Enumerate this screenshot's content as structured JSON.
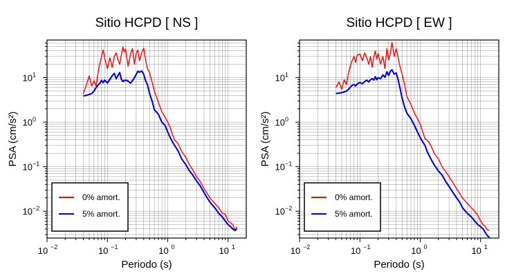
{
  "figure": {
    "colors": {
      "series_0": "#ff0000",
      "series_1": "#0000d8",
      "frame": "#000000",
      "grid": "#000000"
    }
  },
  "chart_data": [
    {
      "type": "line",
      "title": "Sitio HCPD [ NS ]",
      "xlabel": "Periodo (s)",
      "ylabel": "PSA (cm/s²)",
      "xscale": "log",
      "yscale": "log",
      "xlim": [
        0.01,
        20
      ],
      "ylim": [
        0.0025,
        70
      ],
      "grid": true,
      "legend_position": "bottom-left",
      "x_ticks": [
        {
          "base": "10",
          "exp": "−2",
          "value": 0.01
        },
        {
          "base": "10",
          "exp": "−1",
          "value": 0.1
        },
        {
          "base": "10",
          "exp": "0",
          "value": 1
        },
        {
          "base": "10",
          "exp": "1",
          "value": 10
        }
      ],
      "y_ticks": [
        {
          "base": "10",
          "exp": "−2",
          "value": 0.01
        },
        {
          "base": "10",
          "exp": "−1",
          "value": 0.1
        },
        {
          "base": "10",
          "exp": "0",
          "value": 1
        },
        {
          "base": "10",
          "exp": "1",
          "value": 10
        }
      ],
      "series": [
        {
          "name": "0% amort.",
          "color": "#ff0000",
          "x": [
            0.04,
            0.045,
            0.05,
            0.055,
            0.06,
            0.065,
            0.07,
            0.075,
            0.08,
            0.085,
            0.09,
            0.1,
            0.11,
            0.12,
            0.13,
            0.14,
            0.15,
            0.16,
            0.17,
            0.18,
            0.19,
            0.2,
            0.22,
            0.24,
            0.26,
            0.28,
            0.3,
            0.32,
            0.34,
            0.37,
            0.4,
            0.43,
            0.46,
            0.5,
            0.55,
            0.6,
            0.7,
            0.8,
            0.9,
            1.0,
            1.1,
            1.2,
            1.3,
            1.5,
            1.7,
            2.0,
            2.3,
            2.6,
            3.0,
            3.5,
            4.0,
            4.5,
            5.0,
            6.0,
            7.0,
            8.0,
            9.0,
            10.0,
            11.0,
            12.0,
            13.0,
            14.0
          ],
          "y": [
            4.4,
            7.0,
            11.0,
            6.5,
            8.5,
            6.5,
            13.0,
            21.0,
            30.0,
            42.0,
            28.0,
            16.0,
            28.0,
            17.0,
            30.0,
            36.0,
            25.0,
            20.0,
            32.0,
            49.0,
            38.0,
            44.0,
            18.0,
            33.0,
            45.0,
            20.0,
            35.0,
            42.0,
            24.0,
            36.0,
            46.0,
            25.0,
            16.0,
            13.0,
            8.0,
            5.0,
            2.8,
            1.7,
            1.3,
            1.0,
            0.75,
            0.52,
            0.4,
            0.32,
            0.22,
            0.16,
            0.11,
            0.085,
            0.06,
            0.045,
            0.032,
            0.025,
            0.02,
            0.015,
            0.012,
            0.009,
            0.0085,
            0.006,
            0.0055,
            0.005,
            0.0037,
            0.0045
          ]
        },
        {
          "name": "5% amort.",
          "color": "#0000d8",
          "x": [
            0.04,
            0.045,
            0.05,
            0.055,
            0.06,
            0.065,
            0.07,
            0.075,
            0.08,
            0.085,
            0.09,
            0.1,
            0.11,
            0.12,
            0.13,
            0.14,
            0.15,
            0.16,
            0.17,
            0.18,
            0.19,
            0.2,
            0.22,
            0.24,
            0.26,
            0.28,
            0.3,
            0.32,
            0.34,
            0.37,
            0.4,
            0.43,
            0.46,
            0.5,
            0.55,
            0.6,
            0.7,
            0.8,
            0.9,
            1.0,
            1.1,
            1.2,
            1.3,
            1.5,
            1.7,
            2.0,
            2.3,
            2.6,
            3.0,
            3.5,
            4.0,
            4.5,
            5.0,
            6.0,
            7.0,
            8.0,
            9.0,
            10.0,
            11.0,
            12.0,
            13.0,
            14.0
          ],
          "y": [
            3.9,
            4.0,
            4.2,
            4.4,
            5.0,
            6.0,
            6.8,
            7.5,
            8.7,
            7.7,
            8.8,
            7.6,
            9.2,
            11.0,
            12.5,
            9.5,
            11.2,
            13.0,
            9.3,
            8.2,
            8.6,
            8.8,
            8.4,
            7.5,
            8.5,
            10.0,
            11.8,
            14.0,
            13.2,
            14.2,
            11.8,
            8.5,
            7.0,
            4.4,
            3.0,
            1.9,
            1.5,
            1.0,
            0.85,
            0.6,
            0.45,
            0.36,
            0.3,
            0.22,
            0.15,
            0.11,
            0.08,
            0.065,
            0.048,
            0.036,
            0.026,
            0.02,
            0.016,
            0.012,
            0.009,
            0.0075,
            0.006,
            0.005,
            0.0045,
            0.004,
            0.0037,
            0.004
          ]
        }
      ]
    },
    {
      "type": "line",
      "title": "Sitio HCPD [ EW ]",
      "xlabel": "Periodo (s)",
      "ylabel": "PSA (cm/s²)",
      "xscale": "log",
      "yscale": "log",
      "xlim": [
        0.01,
        20
      ],
      "ylim": [
        0.0025,
        70
      ],
      "grid": true,
      "legend_position": "bottom-left",
      "x_ticks": [
        {
          "base": "10",
          "exp": "−2",
          "value": 0.01
        },
        {
          "base": "10",
          "exp": "−1",
          "value": 0.1
        },
        {
          "base": "10",
          "exp": "0",
          "value": 1
        },
        {
          "base": "10",
          "exp": "1",
          "value": 10
        }
      ],
      "y_ticks": [
        {
          "base": "10",
          "exp": "−2",
          "value": 0.01
        },
        {
          "base": "10",
          "exp": "−1",
          "value": 0.1
        },
        {
          "base": "10",
          "exp": "0",
          "value": 1
        },
        {
          "base": "10",
          "exp": "1",
          "value": 10
        }
      ],
      "series": [
        {
          "name": "0% amort.",
          "color": "#ff0000",
          "x": [
            0.04,
            0.045,
            0.05,
            0.055,
            0.06,
            0.065,
            0.07,
            0.075,
            0.08,
            0.085,
            0.09,
            0.1,
            0.11,
            0.12,
            0.13,
            0.14,
            0.15,
            0.16,
            0.17,
            0.18,
            0.19,
            0.2,
            0.22,
            0.24,
            0.26,
            0.28,
            0.3,
            0.32,
            0.34,
            0.37,
            0.4,
            0.43,
            0.46,
            0.5,
            0.55,
            0.6,
            0.7,
            0.8,
            0.9,
            1.0,
            1.1,
            1.2,
            1.3,
            1.5,
            1.7,
            2.0,
            2.3,
            2.6,
            3.0,
            3.5,
            4.0,
            4.5,
            5.0,
            6.0,
            7.0,
            8.0,
            9.0,
            10.0,
            11.0,
            12.0,
            13.0,
            14.0
          ],
          "y": [
            6.0,
            8.0,
            5.5,
            9.0,
            7.0,
            13.0,
            19.0,
            25.0,
            30.0,
            22.0,
            32.0,
            34.0,
            24.0,
            36.0,
            28.0,
            20.0,
            30.0,
            17.0,
            29.0,
            40.0,
            26.0,
            35.0,
            20.0,
            30.0,
            16.0,
            45.0,
            25.0,
            35.0,
            62.0,
            30.0,
            45.0,
            28.0,
            18.0,
            12.0,
            7.0,
            3.8,
            2.5,
            1.6,
            1.2,
            0.9,
            0.6,
            0.42,
            0.4,
            0.3,
            0.2,
            0.15,
            0.1,
            0.08,
            0.06,
            0.043,
            0.032,
            0.025,
            0.02,
            0.015,
            0.012,
            0.01,
            0.008,
            0.006,
            0.005,
            0.0045,
            0.0038,
            0.0037
          ]
        },
        {
          "name": "5% amort.",
          "color": "#0000d8",
          "x": [
            0.04,
            0.045,
            0.05,
            0.055,
            0.06,
            0.065,
            0.07,
            0.075,
            0.08,
            0.085,
            0.09,
            0.1,
            0.11,
            0.12,
            0.13,
            0.14,
            0.15,
            0.16,
            0.17,
            0.18,
            0.19,
            0.2,
            0.22,
            0.24,
            0.26,
            0.28,
            0.3,
            0.32,
            0.34,
            0.37,
            0.4,
            0.43,
            0.46,
            0.5,
            0.55,
            0.6,
            0.7,
            0.8,
            0.9,
            1.0,
            1.1,
            1.2,
            1.3,
            1.5,
            1.7,
            2.0,
            2.3,
            2.6,
            3.0,
            3.5,
            4.0,
            4.5,
            5.0,
            6.0,
            7.0,
            8.0,
            9.0,
            10.0,
            11.0,
            12.0,
            13.0,
            14.0
          ],
          "y": [
            4.4,
            4.5,
            4.6,
            4.8,
            5.0,
            5.5,
            6.2,
            6.8,
            7.0,
            6.5,
            7.2,
            7.8,
            7.3,
            8.2,
            8.8,
            8.0,
            9.0,
            9.5,
            8.8,
            10.5,
            9.0,
            10.0,
            9.5,
            11.5,
            10.2,
            13.5,
            11.2,
            14.0,
            15.0,
            12.0,
            12.8,
            9.0,
            6.0,
            3.5,
            2.2,
            1.6,
            1.2,
            0.85,
            0.6,
            0.45,
            0.36,
            0.3,
            0.22,
            0.15,
            0.11,
            0.08,
            0.065,
            0.048,
            0.036,
            0.026,
            0.02,
            0.016,
            0.012,
            0.009,
            0.0075,
            0.006,
            0.005,
            0.0045,
            0.004,
            0.0033,
            0.0028,
            0.0026
          ]
        }
      ]
    }
  ]
}
